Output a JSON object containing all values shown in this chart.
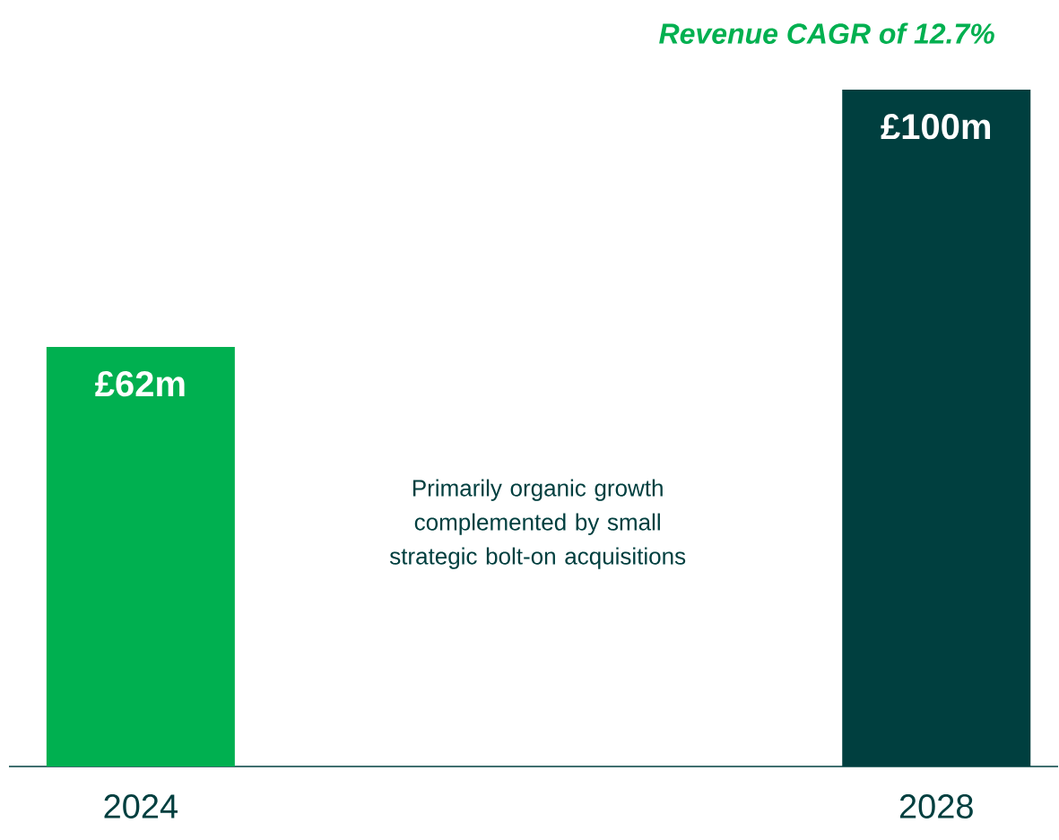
{
  "chart_data": {
    "type": "bar",
    "categories": [
      "2024",
      "2028"
    ],
    "values": [
      62,
      100
    ],
    "colors": [
      "#00b050",
      "#003f3f"
    ],
    "value_labels": [
      "£62m",
      "£100m"
    ],
    "annotations": [
      "Revenue CAGR of 12.7%",
      "Primarily organic growth complemented by small strategic bolt-on acquisitions"
    ],
    "grid": false
  }
}
